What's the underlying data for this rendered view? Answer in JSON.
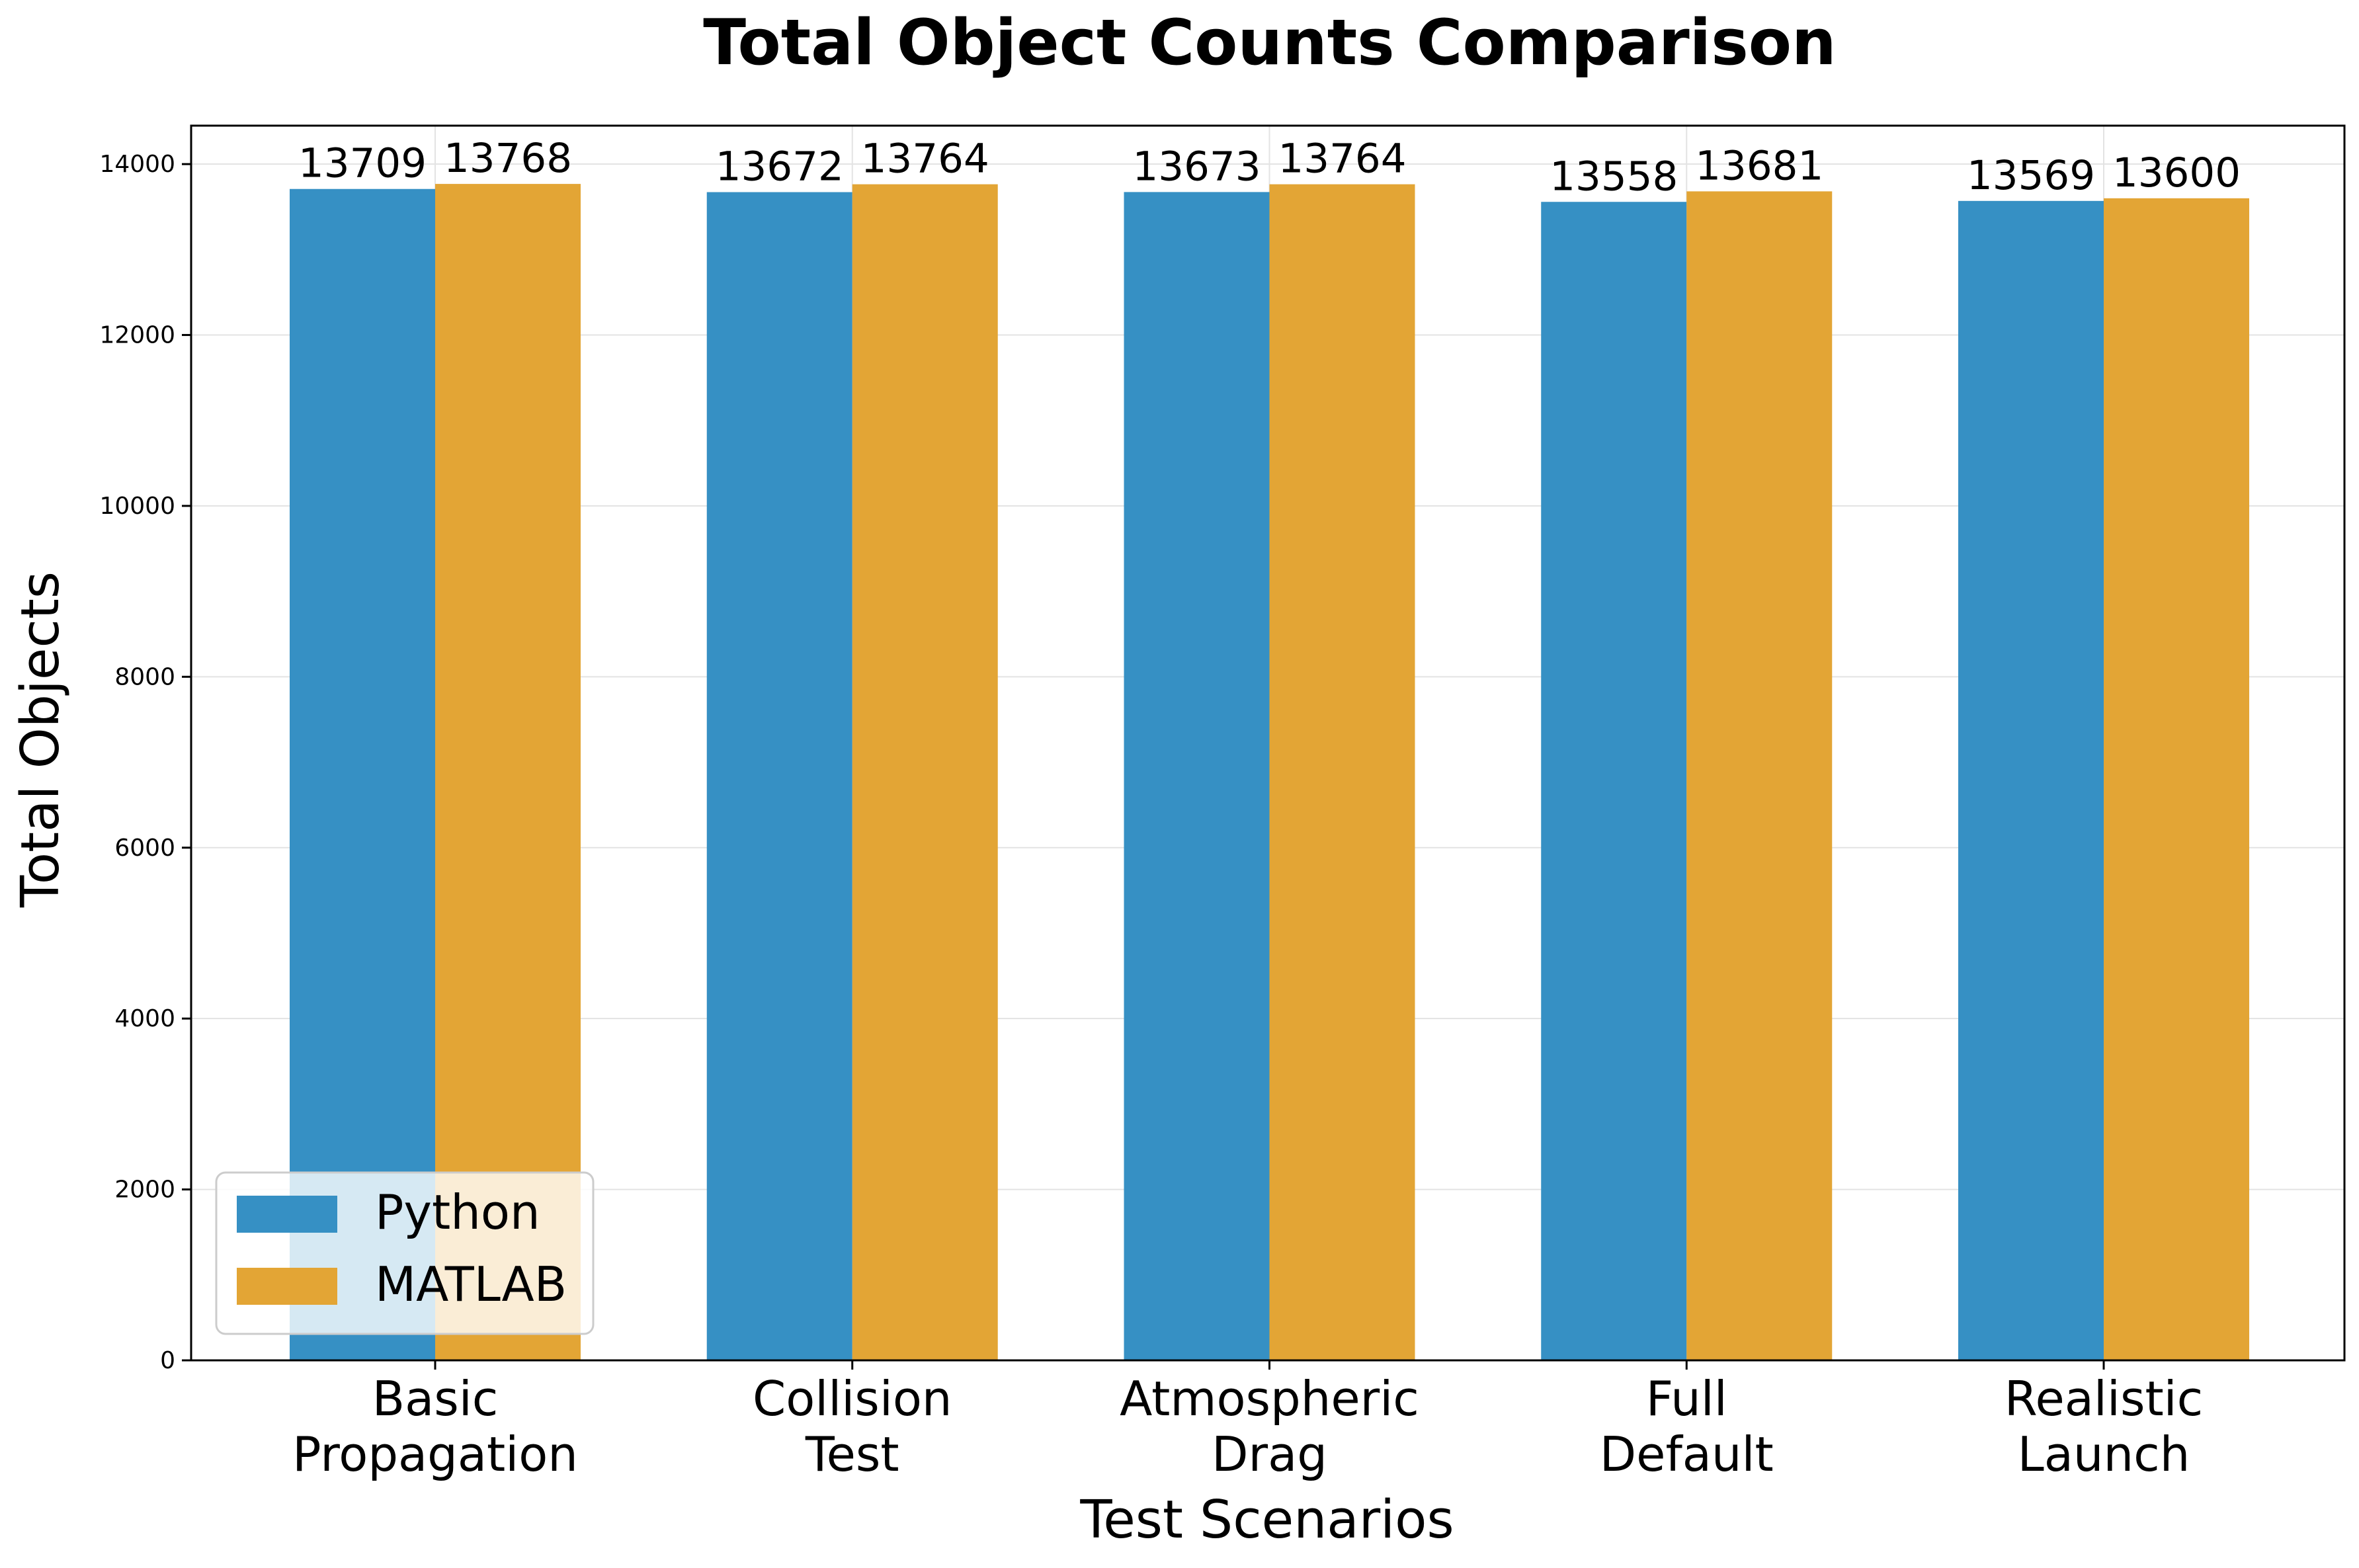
{
  "chart_data": {
    "type": "bar",
    "title": "Total Object Counts Comparison",
    "xlabel": "Test Scenarios",
    "ylabel": "Total Objects",
    "categories": [
      [
        "Basic",
        "Propagation"
      ],
      [
        "Collision",
        "Test"
      ],
      [
        "Atmospheric",
        "Drag"
      ],
      [
        "Full",
        "Default"
      ],
      [
        "Realistic",
        "Launch"
      ]
    ],
    "series": [
      {
        "name": "Python",
        "color": "#3690c4",
        "values": [
          13709,
          13672,
          13673,
          13558,
          13569
        ]
      },
      {
        "name": "MATLAB",
        "color": "#e3a535",
        "values": [
          13768,
          13764,
          13764,
          13681,
          13600
        ]
      }
    ],
    "ylim": [
      0,
      14450
    ],
    "yticks": [
      0,
      2000,
      4000,
      6000,
      8000,
      10000,
      12000,
      14000
    ],
    "grid": true,
    "legend_position": "lower-left"
  }
}
